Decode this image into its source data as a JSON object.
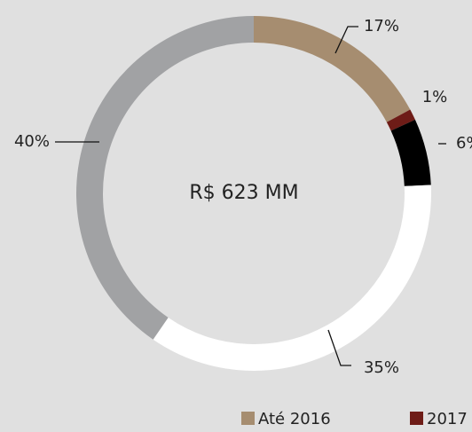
{
  "chart_data": {
    "type": "donut",
    "center_label": "R$ 623 MM",
    "categories": [
      "Até 2016",
      "2017",
      null,
      null,
      null
    ],
    "values": [
      17,
      1,
      6,
      35,
      40
    ],
    "value_labels": [
      "17%",
      "1%",
      "6%",
      "35%",
      "40%"
    ],
    "colors": [
      "#a68d70",
      "#6e1c17",
      "#000000",
      "#ffffff",
      "#a1a2a4"
    ]
  }
}
